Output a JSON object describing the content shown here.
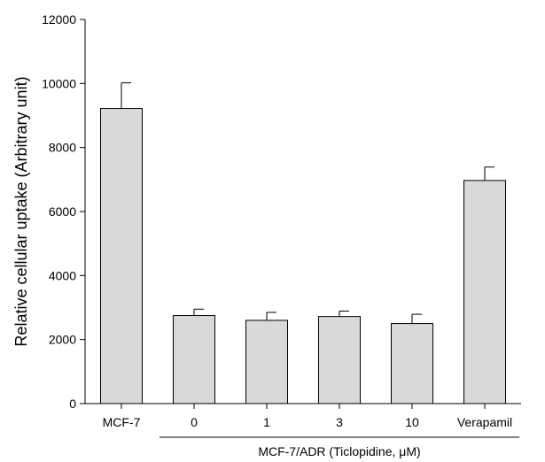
{
  "chart_data": {
    "type": "bar",
    "categories": [
      "MCF-7",
      "0",
      "1",
      "3",
      "10",
      "Verapamil"
    ],
    "values": [
      9220,
      2750,
      2600,
      2720,
      2500,
      6970
    ],
    "errors": [
      800,
      200,
      250,
      170,
      290,
      420
    ],
    "ylabel": "Relative cellular uptake (Arbitrary unit)",
    "xlabel": "",
    "group_label": "MCF-7/ADR (Ticlopidine, μM)",
    "ylim": [
      0,
      12000
    ],
    "yticks": [
      "0",
      "2000",
      "4000",
      "6000",
      "8000",
      "10000",
      "12000"
    ],
    "grid": false,
    "bar_color": "#d9d9d9",
    "edge_color": "#000000"
  }
}
